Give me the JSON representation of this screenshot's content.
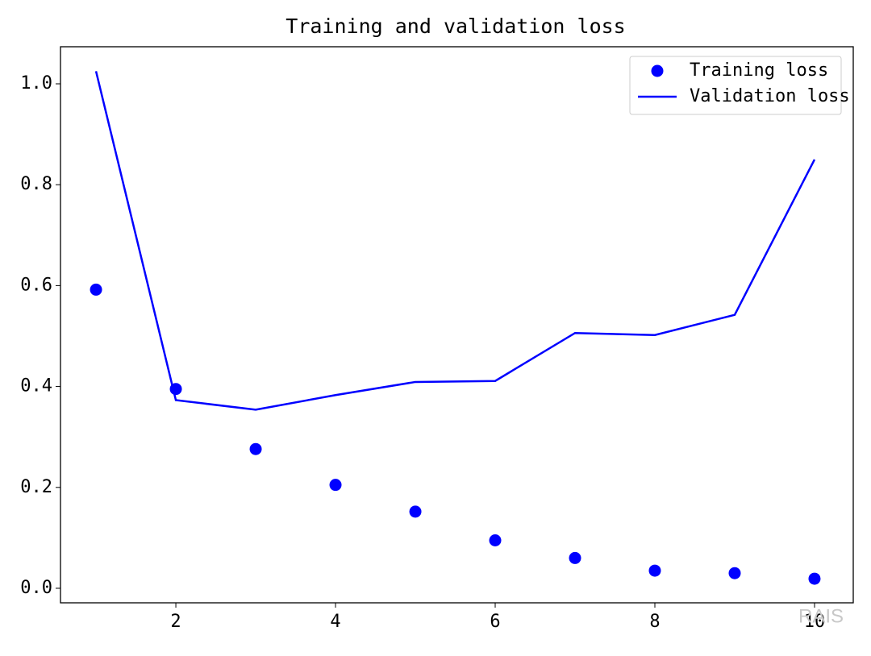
{
  "chart_data": {
    "type": "line",
    "title": "Training and validation loss",
    "x": [
      1,
      2,
      3,
      4,
      5,
      6,
      7,
      8,
      9,
      10
    ],
    "series": [
      {
        "name": "Training loss",
        "type": "scatter",
        "color": "#0000ff",
        "values": [
          0.592,
          0.395,
          0.276,
          0.205,
          0.152,
          0.095,
          0.06,
          0.035,
          0.03,
          0.019
        ]
      },
      {
        "name": "Validation loss",
        "type": "line",
        "color": "#0000ff",
        "values": [
          1.025,
          0.373,
          0.354,
          0.383,
          0.409,
          0.411,
          0.506,
          0.502,
          0.542,
          0.85
        ]
      }
    ],
    "xlim": [
      0.555,
      10.485
    ],
    "xticks": [
      2,
      4,
      6,
      8,
      10
    ],
    "ylim": [
      -0.0288,
      1.0735
    ],
    "yticks": [
      {
        "value": 0,
        "label": "0.0"
      },
      0.2,
      0.4,
      0.6,
      0.8,
      {
        "value": 1,
        "label": "1.0"
      }
    ],
    "legend": "upper right",
    "watermark": "RAIS"
  }
}
